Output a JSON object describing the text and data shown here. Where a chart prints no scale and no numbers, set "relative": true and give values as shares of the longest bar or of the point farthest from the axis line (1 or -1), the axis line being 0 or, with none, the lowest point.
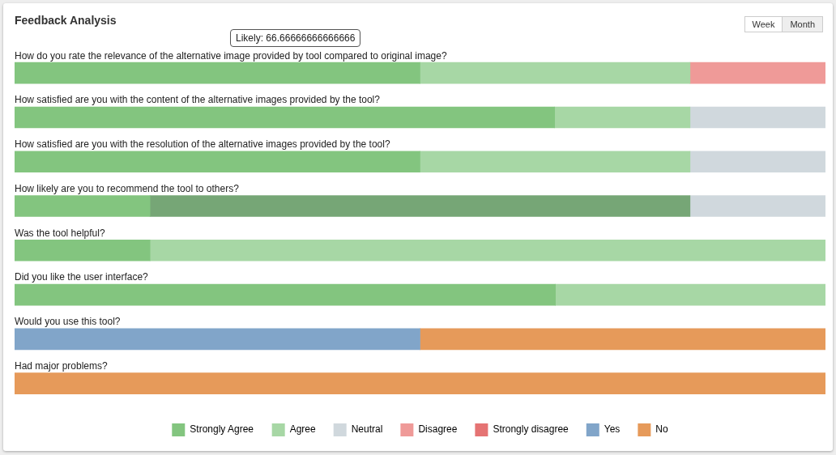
{
  "chart_data": {
    "type": "bar",
    "title": "Feedback Analysis",
    "orientation": "horizontal",
    "stacked": true,
    "relative": true,
    "legend": "bottom",
    "categories": [
      "How do you rate the relevance of the alternative image provided by tool compared to original image?",
      "How satisfied are you with the content of the alternative images provided by the tool?",
      "How satisfied are you with the resolution of the alternative images provided by the tool?",
      "How likely are you to recommend the tool to others?",
      "Was the tool helpful?",
      "Did you like the user interface?",
      "Would you use this tool?",
      "Had major problems?"
    ],
    "series": [
      {
        "name": "Strongly Agree",
        "color": "#83c57f",
        "values": [
          0.5,
          0.666,
          0.5,
          0.167,
          0.167,
          0.667,
          null,
          null
        ]
      },
      {
        "name": "Agree",
        "color": "#a7d7a5",
        "colors": [
          "#a7d7a5",
          "#a7d7a5",
          "#a7d7a5",
          "#76a676",
          "#a7d7a5",
          "#a7d7a5",
          "#a7d7a5",
          "#a7d7a5"
        ],
        "values": [
          0.333,
          0.167,
          0.333,
          0.666,
          0.833,
          0.333,
          null,
          null
        ]
      },
      {
        "name": "Neutral",
        "color": "#d0d8dd",
        "values": [
          null,
          0.167,
          0.167,
          0.167,
          null,
          null,
          null,
          null
        ]
      },
      {
        "name": "Disagree",
        "color": "#ef9a98",
        "values": [
          0.167,
          null,
          null,
          null,
          null,
          null,
          null,
          null
        ]
      },
      {
        "name": "Strongly disagree",
        "color": "#e57373",
        "values": [
          null,
          null,
          null,
          null,
          null,
          null,
          null,
          null
        ]
      },
      {
        "name": "Yes",
        "color": "#81a5c9",
        "values": [
          null,
          null,
          null,
          null,
          null,
          null,
          0.5,
          null
        ]
      },
      {
        "name": "No",
        "color": "#e69a5a",
        "values": [
          null,
          null,
          null,
          null,
          null,
          null,
          0.5,
          1
        ]
      }
    ],
    "annotations": [
      "Likely: 66.66666666666666",
      "Week",
      "Month"
    ]
  }
}
